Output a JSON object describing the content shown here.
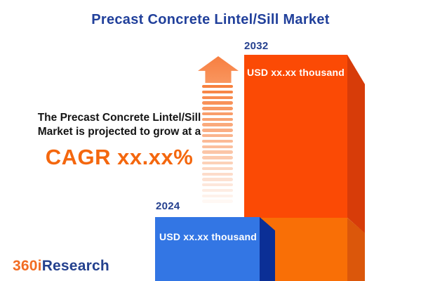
{
  "page": {
    "title": "Precast Concrete Lintel/Sill Market"
  },
  "description": {
    "line1": "The Precast Concrete Lintel/Sill",
    "line2": "Market is projected to grow at a",
    "cagr": "CAGR xx.xx%"
  },
  "chart_data": {
    "type": "bar",
    "title": "Precast Concrete Lintel/Sill Market",
    "categories": [
      "2024",
      "2032"
    ],
    "values": [
      "xx.xx",
      "xx.xx"
    ],
    "unit": "USD thousand",
    "xlabel": "",
    "ylabel": "",
    "legend": "none",
    "grid": false,
    "bars": [
      {
        "year": "2024",
        "value_label": "USD xx.xx thousand",
        "front_color": "#3376E4",
        "side_color": "#0B2F96"
      },
      {
        "year": "2032",
        "value_label": "USD xx.xx thousand",
        "front_color": "#FB4A05",
        "side_color": "#D73C09",
        "lower_front_color": "#F96F06",
        "lower_side_color": "#DB570B"
      }
    ]
  },
  "icons": {
    "growth_arrow": "up-arrow-fading-stripes"
  },
  "logo": {
    "part1": "360i",
    "part2": "Research",
    "part1_color": "#F26C23",
    "part2_color": "#24418E"
  },
  "colors": {
    "title": "#21409B",
    "description_text": "#141414",
    "cagr": "#F4670E",
    "year_label": "#26418F",
    "value_text": "#FFFFFF",
    "arrow": "#F7813F",
    "background": "#FFFFFF"
  }
}
